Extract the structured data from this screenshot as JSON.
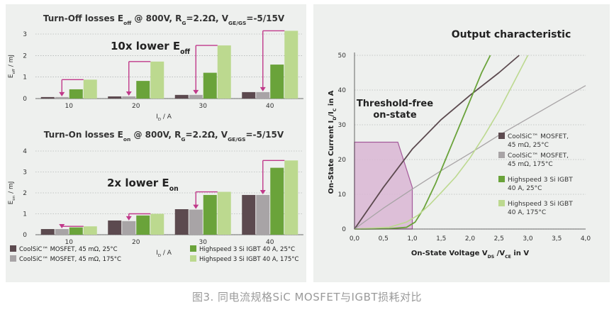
{
  "caption": "图3. 同电流规格SiC MOSFET与IGBT损耗对比",
  "colors": {
    "mosfet25": "#5c4a4f",
    "mosfet175": "#a8a4a6",
    "igbt25": "#6aa33a",
    "igbt175": "#bcd98f",
    "arrow": "#c0398a",
    "threshold_fill": "#d9b6d3",
    "threshold_stroke": "#a45a9a",
    "panel_bg": "#eef0ee"
  },
  "chart_data": [
    {
      "type": "bar",
      "title_parts": [
        "Turn-Off losses E",
        "off",
        " @ 800V, R",
        "G",
        "=2.2Ω, V",
        "GE/GS",
        "=-5/15V"
      ],
      "ylabel_parts": [
        "E",
        "off",
        " / mJ"
      ],
      "xlabel_parts": [
        "I",
        "D",
        " / A"
      ],
      "annotation_parts": [
        "10x lower E",
        "off"
      ],
      "categories": [
        "10",
        "20",
        "30",
        "40"
      ],
      "ylim": [
        0,
        3
      ],
      "yticks": [
        "0",
        "1",
        "2",
        "3"
      ],
      "series": [
        {
          "values": [
            0.07,
            0.1,
            0.17,
            0.3
          ]
        },
        {
          "values": [
            0.07,
            0.1,
            0.17,
            0.3
          ]
        },
        {
          "values": [
            0.43,
            0.82,
            1.2,
            1.58
          ]
        },
        {
          "values": [
            0.88,
            1.72,
            2.47,
            3.15
          ]
        }
      ]
    },
    {
      "type": "bar",
      "title_parts": [
        "Turn-On losses E",
        "on",
        " @ 800V, R",
        "G",
        "=2.2Ω, V",
        "GE/GS",
        "=-5/15V"
      ],
      "ylabel_parts": [
        "E",
        "on",
        " / mJ"
      ],
      "xlabel_parts": [
        "I",
        "D",
        " / A"
      ],
      "annotation_parts": [
        "2x lower E",
        "on"
      ],
      "categories": [
        "10",
        "20",
        "30",
        "40"
      ],
      "ylim": [
        0,
        4
      ],
      "yticks": [
        "0",
        "1",
        "2",
        "3",
        "4"
      ],
      "series": [
        {
          "values": [
            0.27,
            0.68,
            1.22,
            1.9
          ]
        },
        {
          "values": [
            0.27,
            0.65,
            1.2,
            1.9
          ]
        },
        {
          "values": [
            0.35,
            0.92,
            1.9,
            3.2
          ]
        },
        {
          "values": [
            0.4,
            1.0,
            2.05,
            3.55
          ]
        }
      ],
      "legend": [
        "CoolSiC™ MOSFET, 45 mΩ, 25°C",
        "CoolSiC™ MOSFET, 45 mΩ, 175°C",
        "Highspeed 3 Si IGBT 40 A, 25°C",
        "Highspeed 3 Si IGBT 40 A, 175°C"
      ]
    },
    {
      "type": "line",
      "title": "Output characteristic",
      "xlabel_parts": [
        "On-State Voltage V",
        "DS",
        " /V",
        "CE",
        " in V"
      ],
      "ylabel_parts": [
        "On-State Current I",
        "D",
        "/I",
        "C",
        " in A"
      ],
      "xlim": [
        0,
        4
      ],
      "ylim": [
        0,
        50
      ],
      "xticks": [
        "0,0",
        "0,5",
        "1,0",
        "1,5",
        "2,0",
        "2,5",
        "3,0",
        "3,5",
        "4,0"
      ],
      "yticks": [
        "0",
        "10",
        "20",
        "30",
        "40",
        "50"
      ],
      "annotation": [
        "Threshold-free",
        "on-state"
      ],
      "threshold_region": [
        [
          0,
          0
        ],
        [
          0,
          25
        ],
        [
          0.75,
          25
        ],
        [
          1.0,
          12
        ],
        [
          1.0,
          0
        ]
      ],
      "series": [
        {
          "name": "CoolSiC™ MOSFET, 45 mΩ, 25°C",
          "x": [
            0,
            0.5,
            1.0,
            1.5,
            2.0,
            2.5,
            2.85
          ],
          "y": [
            0,
            12,
            23,
            31.5,
            38.5,
            45,
            50
          ]
        },
        {
          "name": "CoolSiC™ MOSFET, 45 mΩ, 175°C",
          "x": [
            0,
            0.5,
            1.0,
            1.5,
            2.0,
            2.5,
            3.0,
            3.5,
            4.0
          ],
          "y": [
            0,
            6,
            11.5,
            16.8,
            21.8,
            27,
            31.8,
            36.6,
            41.3
          ]
        },
        {
          "name": "Highspeed 3 Si IGBT 40 A, 25°C",
          "x": [
            0,
            0.6,
            0.9,
            1.05,
            1.2,
            1.4,
            1.6,
            1.8,
            2.0,
            2.2,
            2.35
          ],
          "y": [
            0,
            0.1,
            0.5,
            2,
            6,
            13,
            21,
            29,
            37,
            45,
            50
          ]
        },
        {
          "name": "Highspeed 3 Si IGBT 40 A, 175°C",
          "x": [
            0,
            0.6,
            0.9,
            1.1,
            1.3,
            1.5,
            1.75,
            2.0,
            2.25,
            2.5,
            2.75,
            3.0
          ],
          "y": [
            0,
            0.5,
            2,
            4,
            7,
            10.5,
            15,
            20.5,
            27,
            34,
            42,
            50
          ]
        }
      ],
      "legend": [
        [
          "CoolSiC™ MOSFET,",
          "45 mΩ, 25°C"
        ],
        [
          "CoolSiC™ MOSFET,",
          "45 mΩ, 175°C"
        ],
        [
          "Highspeed 3 Si IGBT",
          "40 A, 25°C"
        ],
        [
          "Highspeed 3 Si IGBT",
          "40 A, 175°C"
        ]
      ]
    }
  ]
}
